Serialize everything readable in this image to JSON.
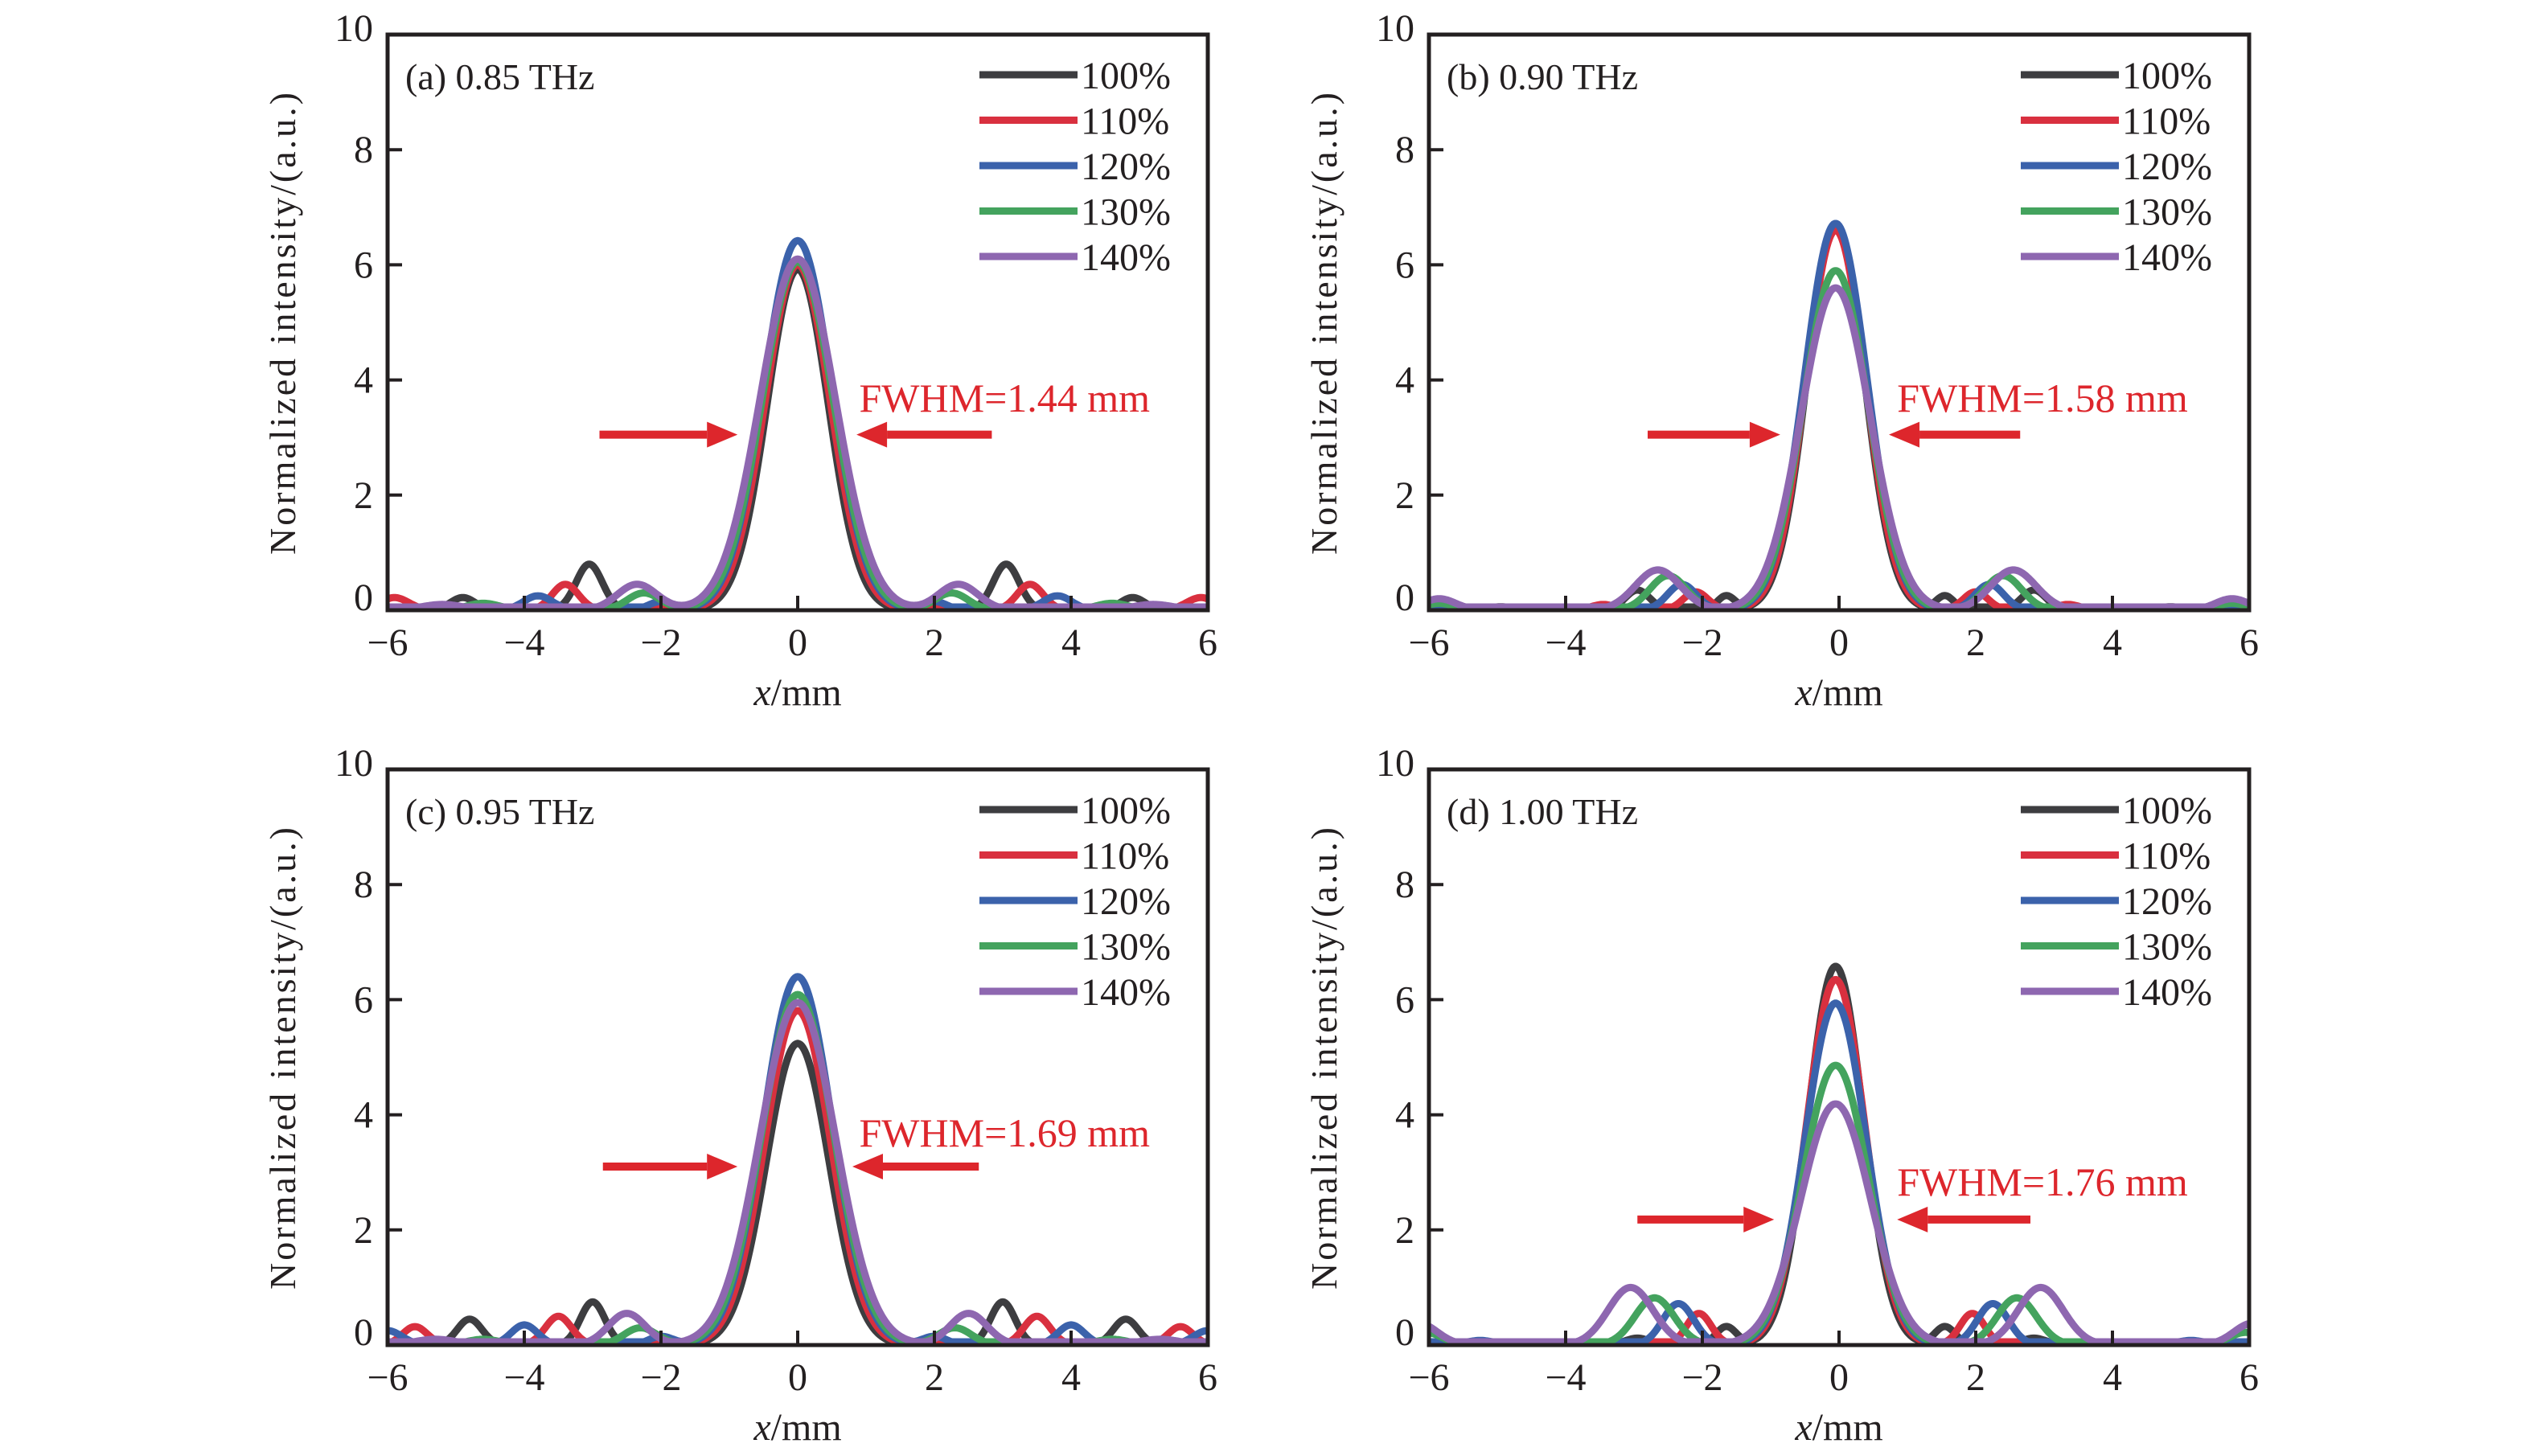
{
  "chart_data": [
    {
      "type": "line",
      "panel": "a",
      "title": "(a) 0.85 THz",
      "xlabel_italic": "x",
      "xlabel_unit": "/mm",
      "ylabel": "Normalized intensity/(a.u.)",
      "xlim": [
        -6,
        6
      ],
      "ylim": [
        0,
        10
      ],
      "xticks": [
        "−6",
        "−4",
        "−2",
        "0",
        "2",
        "4",
        "6"
      ],
      "xtick_values": [
        -6,
        -4,
        -2,
        0,
        2,
        4,
        6
      ],
      "yticks": [
        "0",
        "2",
        "4",
        "6",
        "8",
        "10"
      ],
      "ytick_values": [
        0,
        2,
        4,
        6,
        8,
        10
      ],
      "legend_position": "top-right",
      "annotation": {
        "text": "FWHM=1.44 mm",
        "text_x": 0.9,
        "text_y": 3.45,
        "arrow_y": 3.05,
        "left_arrow": [
          -2.9,
          -0.88
        ],
        "right_arrow": [
          2.84,
          0.86
        ]
      },
      "series": [
        {
          "name": "100%",
          "peak": 5.92,
          "center": 0.0,
          "width": 0.62,
          "sidelobes": [
            {
              "x": 3.05,
              "y": 0.8,
              "w": 0.32
            },
            {
              "x": 4.9,
              "y": 0.22,
              "w": 0.3
            }
          ]
        },
        {
          "name": "110%",
          "peak": 6.0,
          "center": 0.0,
          "width": 0.66,
          "sidelobes": [
            {
              "x": 3.4,
              "y": 0.45,
              "w": 0.32
            },
            {
              "x": 5.9,
              "y": 0.22,
              "w": 0.35
            }
          ]
        },
        {
          "name": "120%",
          "peak": 6.42,
          "center": 0.0,
          "width": 0.69,
          "sidelobes": [
            {
              "x": 3.8,
              "y": 0.25,
              "w": 0.35
            },
            {
              "x": 2.0,
              "y": 0.15,
              "w": 0.3
            }
          ]
        },
        {
          "name": "130%",
          "peak": 6.05,
          "center": 0.0,
          "width": 0.72,
          "sidelobes": [
            {
              "x": 2.25,
              "y": 0.3,
              "w": 0.4
            },
            {
              "x": 4.6,
              "y": 0.12,
              "w": 0.4
            }
          ]
        },
        {
          "name": "140%",
          "peak": 6.1,
          "center": 0.0,
          "width": 0.76,
          "sidelobes": [
            {
              "x": 2.35,
              "y": 0.45,
              "w": 0.48
            },
            {
              "x": 5.2,
              "y": 0.1,
              "w": 0.5
            }
          ]
        }
      ]
    },
    {
      "type": "line",
      "panel": "b",
      "title": "(b) 0.90 THz",
      "xlabel_italic": "x",
      "xlabel_unit": "/mm",
      "ylabel": "Normalized intensity/(a.u.)",
      "xlim": [
        -6,
        6
      ],
      "ylim": [
        0,
        10
      ],
      "xticks": [
        "−6",
        "−4",
        "−2",
        "0",
        "2",
        "4",
        "6"
      ],
      "xtick_values": [
        -6,
        -4,
        -2,
        0,
        2,
        4,
        6
      ],
      "yticks": [
        "0",
        "2",
        "4",
        "6",
        "8",
        "10"
      ],
      "ytick_values": [
        0,
        2,
        4,
        6,
        8,
        10
      ],
      "legend_position": "top-right",
      "annotation": {
        "text": "FWHM=1.58 mm",
        "text_x": 0.85,
        "text_y": 3.45,
        "arrow_y": 3.05,
        "left_arrow": [
          -2.8,
          -0.86
        ],
        "right_arrow": [
          2.65,
          0.73
        ]
      },
      "series": [
        {
          "name": "100%",
          "peak": 6.7,
          "center": -0.05,
          "width": 0.58,
          "sidelobes": [
            {
              "x": 1.6,
              "y": 0.25,
              "w": 0.22
            },
            {
              "x": 2.9,
              "y": 0.35,
              "w": 0.3
            },
            {
              "x": 4.9,
              "y": 0.06,
              "w": 0.3
            }
          ]
        },
        {
          "name": "110%",
          "peak": 6.6,
          "center": -0.05,
          "width": 0.6,
          "sidelobes": [
            {
              "x": 2.05,
              "y": 0.32,
              "w": 0.3
            },
            {
              "x": 3.4,
              "y": 0.1,
              "w": 0.3
            }
          ]
        },
        {
          "name": "120%",
          "peak": 6.72,
          "center": -0.05,
          "width": 0.63,
          "sidelobes": [
            {
              "x": 2.25,
              "y": 0.45,
              "w": 0.35
            },
            {
              "x": 5.5,
              "y": 0.05,
              "w": 0.3
            }
          ]
        },
        {
          "name": "130%",
          "peak": 5.9,
          "center": -0.05,
          "width": 0.66,
          "sidelobes": [
            {
              "x": 2.45,
              "y": 0.6,
              "w": 0.45
            },
            {
              "x": 5.8,
              "y": 0.12,
              "w": 0.35
            }
          ]
        },
        {
          "name": "140%",
          "peak": 5.6,
          "center": -0.05,
          "width": 0.7,
          "sidelobes": [
            {
              "x": 2.6,
              "y": 0.7,
              "w": 0.55
            },
            {
              "x": 5.8,
              "y": 0.2,
              "w": 0.4
            }
          ]
        }
      ]
    },
    {
      "type": "line",
      "panel": "c",
      "title": "(c) 0.95 THz",
      "xlabel_italic": "x",
      "xlabel_unit": "/mm",
      "ylabel": "Normalized intensity/(a.u.)",
      "xlim": [
        -6,
        6
      ],
      "ylim": [
        0,
        10
      ],
      "xticks": [
        "−6",
        "−4",
        "−2",
        "0",
        "2",
        "4",
        "6"
      ],
      "xtick_values": [
        -6,
        -4,
        -2,
        0,
        2,
        4,
        6
      ],
      "yticks": [
        "0",
        "2",
        "4",
        "6",
        "8",
        "10"
      ],
      "ytick_values": [
        0,
        2,
        4,
        6,
        8,
        10
      ],
      "legend_position": "top-right",
      "annotation": {
        "text": "FWHM=1.69 mm",
        "text_x": 0.9,
        "text_y": 3.45,
        "arrow_y": 3.1,
        "left_arrow": [
          -2.85,
          -0.88
        ],
        "right_arrow": [
          2.65,
          0.8
        ]
      },
      "series": [
        {
          "name": "100%",
          "peak": 5.24,
          "center": 0.0,
          "width": 0.64,
          "sidelobes": [
            {
              "x": 3.0,
              "y": 0.75,
              "w": 0.3
            },
            {
              "x": 4.8,
              "y": 0.45,
              "w": 0.3
            }
          ]
        },
        {
          "name": "110%",
          "peak": 5.81,
          "center": 0.0,
          "width": 0.67,
          "sidelobes": [
            {
              "x": 3.5,
              "y": 0.5,
              "w": 0.32
            },
            {
              "x": 5.6,
              "y": 0.32,
              "w": 0.3
            }
          ]
        },
        {
          "name": "120%",
          "peak": 6.4,
          "center": 0.0,
          "width": 0.7,
          "sidelobes": [
            {
              "x": 2.0,
              "y": 0.15,
              "w": 0.3
            },
            {
              "x": 4.0,
              "y": 0.35,
              "w": 0.32
            },
            {
              "x": 6.0,
              "y": 0.25,
              "w": 0.35
            }
          ]
        },
        {
          "name": "130%",
          "peak": 6.09,
          "center": 0.0,
          "width": 0.73,
          "sidelobes": [
            {
              "x": 2.3,
              "y": 0.3,
              "w": 0.4
            },
            {
              "x": 4.6,
              "y": 0.1,
              "w": 0.4
            }
          ]
        },
        {
          "name": "140%",
          "peak": 5.95,
          "center": 0.0,
          "width": 0.77,
          "sidelobes": [
            {
              "x": 2.5,
              "y": 0.55,
              "w": 0.45
            },
            {
              "x": 5.3,
              "y": 0.1,
              "w": 0.5
            }
          ]
        }
      ]
    },
    {
      "type": "line",
      "panel": "d",
      "title": "(d) 1.00 THz",
      "xlabel_italic": "x",
      "xlabel_unit": "/mm",
      "ylabel": "Normalized intensity/(a.u.)",
      "xlim": [
        -6,
        6
      ],
      "ylim": [
        0,
        10
      ],
      "xticks": [
        "−6",
        "−4",
        "−2",
        "0",
        "2",
        "4",
        "6"
      ],
      "xtick_values": [
        -6,
        -4,
        -2,
        0,
        2,
        4,
        6
      ],
      "yticks": [
        "0",
        "2",
        "4",
        "6",
        "8",
        "10"
      ],
      "ytick_values": [
        0,
        2,
        4,
        6,
        8,
        10
      ],
      "legend_position": "top-right",
      "annotation": {
        "text": "FWHM=1.76 mm",
        "text_x": 0.85,
        "text_y": 2.6,
        "arrow_y": 2.18,
        "left_arrow": [
          -2.95,
          -0.95
        ],
        "right_arrow": [
          2.8,
          0.85
        ]
      },
      "series": [
        {
          "name": "100%",
          "peak": 6.58,
          "center": -0.05,
          "width": 0.56,
          "sidelobes": [
            {
              "x": 1.6,
              "y": 0.32,
              "w": 0.25
            },
            {
              "x": 2.9,
              "y": 0.12,
              "w": 0.3
            }
          ]
        },
        {
          "name": "110%",
          "peak": 6.35,
          "center": -0.05,
          "width": 0.59,
          "sidelobes": [
            {
              "x": 2.0,
              "y": 0.55,
              "w": 0.3
            },
            {
              "x": 4.5,
              "y": 0.05,
              "w": 0.3
            }
          ]
        },
        {
          "name": "120%",
          "peak": 5.94,
          "center": -0.05,
          "width": 0.62,
          "sidelobes": [
            {
              "x": 2.3,
              "y": 0.72,
              "w": 0.38
            },
            {
              "x": 5.2,
              "y": 0.08,
              "w": 0.35
            }
          ]
        },
        {
          "name": "130%",
          "peak": 4.86,
          "center": -0.05,
          "width": 0.66,
          "sidelobes": [
            {
              "x": 2.65,
              "y": 0.82,
              "w": 0.48
            },
            {
              "x": 6.0,
              "y": 0.22,
              "w": 0.4
            }
          ]
        },
        {
          "name": "140%",
          "peak": 4.19,
          "center": -0.05,
          "width": 0.71,
          "sidelobes": [
            {
              "x": 3.0,
              "y": 1.0,
              "w": 0.55
            },
            {
              "x": 6.1,
              "y": 0.38,
              "w": 0.45
            }
          ]
        }
      ]
    }
  ],
  "legend": {
    "entries": [
      "100%",
      "110%",
      "120%",
      "130%",
      "140%"
    ]
  },
  "colors": {
    "series": [
      "#3d3d40",
      "#d9303f",
      "#3b62ab",
      "#44a35e",
      "#8e67b0"
    ],
    "annotation": "#dd262c",
    "axis": "#231f20"
  }
}
